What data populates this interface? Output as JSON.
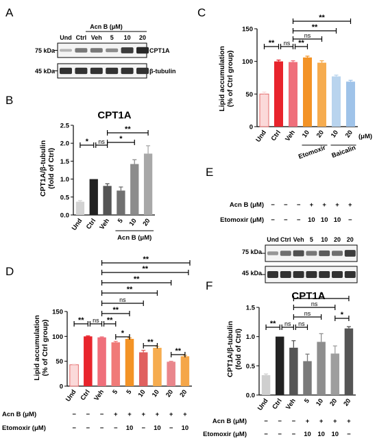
{
  "panels": {
    "A": "A",
    "B": "B",
    "C": "C",
    "D": "D",
    "E": "E",
    "F": "F"
  },
  "blot_A": {
    "header": "Acn B (μM)",
    "lanes": [
      "Und",
      "Ctrl",
      "Veh",
      "5",
      "10",
      "20"
    ],
    "markers": [
      "75 kDa",
      "45 kDa"
    ],
    "proteins": [
      "CPT1A",
      "β-tubulin"
    ],
    "band_intensity_cpt1a": [
      0.25,
      0.55,
      0.55,
      0.45,
      0.85,
      0.95
    ],
    "band_intensity_tubulin": [
      0.9,
      0.9,
      0.9,
      0.9,
      0.9,
      0.9
    ]
  },
  "blot_E": {
    "rows": [
      {
        "label": "Acn B (μM)",
        "values": [
          "−",
          "−",
          "−",
          "+",
          "+",
          "+",
          "+"
        ]
      },
      {
        "label": "Etomoxir (μM)",
        "values": [
          "−",
          "−",
          "−",
          "10",
          "10",
          "10",
          "−"
        ]
      }
    ],
    "lanes": [
      "Und",
      "Ctrl",
      "Veh",
      "5",
      "10",
      "20",
      "20"
    ],
    "markers": [
      "75 kDa",
      "45 kDa"
    ],
    "band_intensity_cpt1a": [
      0.4,
      0.6,
      0.75,
      0.55,
      0.7,
      0.6,
      0.85
    ],
    "band_intensity_tubulin": [
      0.9,
      0.9,
      0.9,
      0.9,
      0.9,
      0.9,
      0.9
    ]
  },
  "chart_data": [
    {
      "panel": "B",
      "type": "bar",
      "title": "CPT1A",
      "ylabel": [
        "CPT1A/β-tubulin",
        "(fold of Ctrl)"
      ],
      "ylim": [
        0,
        2.5
      ],
      "yticks": [
        "0.0",
        "0.5",
        "1.0",
        "1.5",
        "2.0",
        "2.5"
      ],
      "categories": [
        "Und",
        "Ctrl",
        "Veh",
        "5",
        "10",
        "20"
      ],
      "values": [
        0.37,
        1.0,
        0.81,
        0.68,
        1.42,
        1.71
      ],
      "errors": [
        0.03,
        0.0,
        0.06,
        0.1,
        0.12,
        0.22
      ],
      "colors": [
        "#d2d2d2",
        "#222222",
        "#555555",
        "#707070",
        "#8c8c8c",
        "#a8a8a8"
      ],
      "group_label": "Acn B (μM)",
      "significance": [
        "*",
        "ns",
        "*",
        "**"
      ]
    },
    {
      "panel": "C",
      "type": "bar",
      "ylabel": [
        "Lipid accumulation",
        "(% of Ctrl group)"
      ],
      "ylim": [
        0,
        150
      ],
      "yticks": [
        "0",
        "50",
        "100",
        "150"
      ],
      "categories": [
        "Und",
        "Ctrl",
        "Veh",
        "10",
        "20",
        "10",
        "20"
      ],
      "values": [
        50,
        100,
        99,
        106,
        98,
        77,
        69
      ],
      "errors": [
        3,
        2,
        2,
        2,
        3,
        2,
        2
      ],
      "colors": [
        "#fbd9d9",
        "#e8242c",
        "#ef6f7b",
        "#f39326",
        "#f6ac4f",
        "#b9d4ee",
        "#9fc3e9"
      ],
      "group_labels": [
        "Etomoxir",
        "Baicalin"
      ],
      "unit": "(μM)",
      "significance": [
        "**",
        "ns",
        "**",
        "ns",
        "**",
        "**"
      ]
    },
    {
      "panel": "D",
      "type": "bar",
      "ylabel": [
        "Lipid accumulation",
        "(% of Ctrl group)"
      ],
      "ylim": [
        0,
        150
      ],
      "yticks": [
        "0",
        "50",
        "100",
        "150"
      ],
      "categories": [
        "Und",
        "Ctrl",
        "Veh",
        "5",
        "5",
        "10",
        "10",
        "20",
        "20"
      ],
      "values": [
        43,
        100,
        98,
        88,
        95,
        68,
        77,
        49,
        60
      ],
      "errors": [
        1,
        1,
        1,
        2,
        2,
        4,
        3,
        1,
        2
      ],
      "colors": [
        "#fbd9d9",
        "#e8242c",
        "#ef6f7b",
        "#f07a78",
        "#f39326",
        "#e0605f",
        "#f6ac4f",
        "#e9868c",
        "#f5a648"
      ],
      "condition_rows": [
        {
          "label": "Acn B (μM)",
          "values": [
            "−",
            "−",
            "−",
            "+",
            "+",
            "+",
            "+",
            "+",
            "+"
          ]
        },
        {
          "label": "Etomoxir (μM)",
          "values": [
            "−",
            "−",
            "−",
            "−",
            "10",
            "−",
            "10",
            "−",
            "10"
          ]
        }
      ],
      "significance": [
        "**",
        "ns",
        "**",
        "*",
        "**",
        "**",
        "**",
        "ns",
        "**",
        "**",
        "**",
        "**"
      ]
    },
    {
      "panel": "F",
      "type": "bar",
      "title": "CPT1A",
      "ylabel": [
        "CPT1A/β-tubulin",
        "(fold of Ctrl)"
      ],
      "ylim": [
        0,
        1.5
      ],
      "yticks": [
        "0.0",
        "0.5",
        "1.0",
        "1.5"
      ],
      "categories": [
        "Und",
        "Ctrl",
        "Veh",
        "5",
        "10",
        "20",
        "20"
      ],
      "values": [
        0.34,
        1.0,
        0.81,
        0.58,
        0.91,
        0.71,
        1.14
      ],
      "errors": [
        0.02,
        0.0,
        0.12,
        0.12,
        0.14,
        0.13,
        0.03
      ],
      "colors": [
        "#cfcfcf",
        "#222222",
        "#555555",
        "#7a7a7a",
        "#8e8e8e",
        "#9e9e9e",
        "#555555"
      ],
      "condition_rows": [
        {
          "label": "Acn B (μM)",
          "values": [
            "−",
            "−",
            "−",
            "+",
            "+",
            "+",
            "+"
          ]
        },
        {
          "label": "Etomoxir (μM)",
          "values": [
            "−",
            "−",
            "−",
            "10",
            "10",
            "10",
            "−"
          ]
        }
      ],
      "significance": [
        "**",
        "ns",
        "ns",
        "ns",
        "ns",
        "*",
        "*"
      ]
    }
  ]
}
